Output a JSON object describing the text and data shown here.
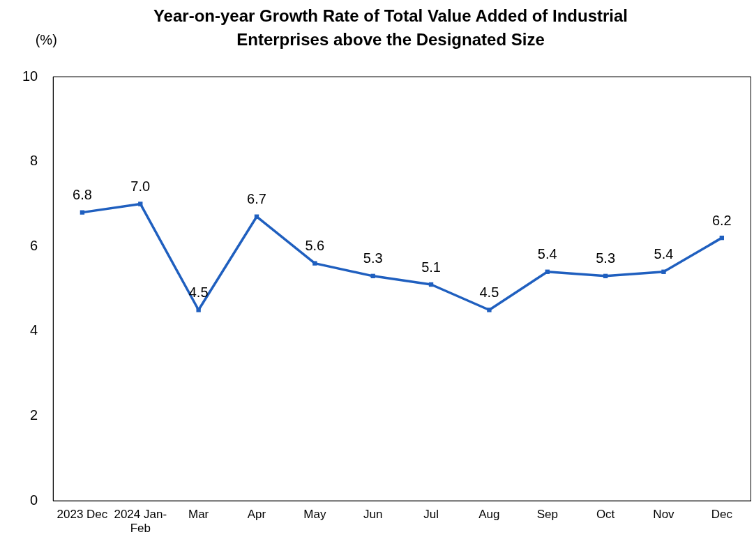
{
  "chart_data": {
    "type": "line",
    "title": "Year-on-year Growth Rate of Total Value Added of Industrial Enterprises above the Designated Size",
    "ylabel": "(%)",
    "categories": [
      "2023 Dec",
      "2024 Jan-Feb",
      "Mar",
      "Apr",
      "May",
      "Jun",
      "Jul",
      "Aug",
      "Sep",
      "Oct",
      "Nov",
      "Dec"
    ],
    "series": [
      {
        "color": "#1f5fbf",
        "values": [
          6.8,
          7.0,
          4.5,
          6.7,
          5.6,
          5.3,
          5.1,
          4.5,
          5.4,
          5.3,
          5.4,
          6.2
        ],
        "value_labels": [
          "6.8",
          "7.0",
          "4.5",
          "6.7",
          "5.6",
          "5.3",
          "5.1",
          "4.5",
          "5.4",
          "5.3",
          "5.4",
          "6.2"
        ]
      }
    ],
    "ylim": [
      0,
      10
    ],
    "yticks": [
      0,
      2,
      4,
      6,
      8,
      10
    ],
    "grid": false,
    "legend": false,
    "marker": "square",
    "line_style": "solid"
  }
}
